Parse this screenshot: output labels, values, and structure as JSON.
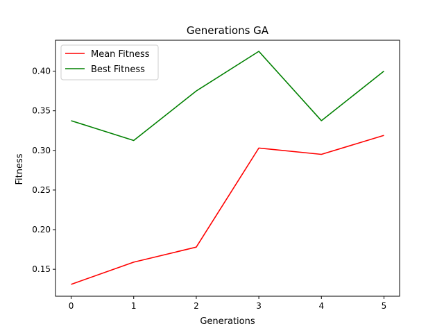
{
  "chart_data": {
    "type": "line",
    "title": "Generations GA",
    "xlabel": "Generations",
    "ylabel": "Fitness",
    "x": [
      0,
      1,
      2,
      3,
      4,
      5
    ],
    "xticks": [
      "0",
      "1",
      "2",
      "3",
      "4",
      "5"
    ],
    "yticks": [
      "0.15",
      "0.20",
      "0.25",
      "0.30",
      "0.35",
      "0.40"
    ],
    "ytick_values": [
      0.15,
      0.2,
      0.25,
      0.3,
      0.35,
      0.4
    ],
    "xlim": [
      -0.25,
      5.25
    ],
    "ylim": [
      0.116,
      0.439
    ],
    "grid": false,
    "legend_position": "top-left",
    "series": [
      {
        "name": "Mean Fitness",
        "color": "#ff0000",
        "values": [
          0.131,
          0.159,
          0.178,
          0.303,
          0.295,
          0.319
        ]
      },
      {
        "name": "Best Fitness",
        "color": "#008000",
        "values": [
          0.3375,
          0.3125,
          0.375,
          0.425,
          0.3375,
          0.4
        ]
      }
    ]
  }
}
